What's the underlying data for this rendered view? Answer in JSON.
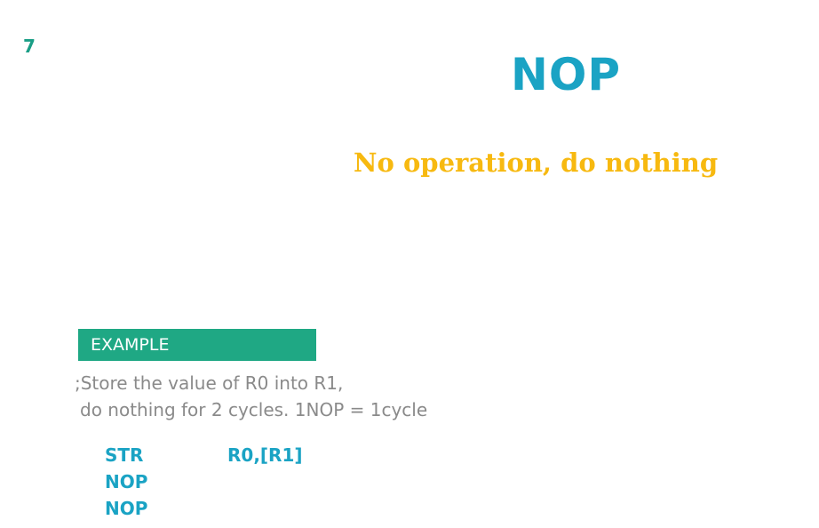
{
  "slide": {
    "number": "7",
    "title": "NOP",
    "subtitle": "No operation, do nothing"
  },
  "example": {
    "label": "EXAMPLE",
    "comment_lines": [
      ";Store the value of R0 into R1,",
      "do nothing for 2 cycles.  1NOP = 1cycle"
    ],
    "code": [
      {
        "mnemonic": "STR",
        "operands": "R0,[R1]"
      },
      {
        "mnemonic": "NOP",
        "operands": ""
      },
      {
        "mnemonic": "NOP",
        "operands": ""
      }
    ]
  },
  "colors": {
    "title": "#1aa3c4",
    "subtitle": "#f7b910",
    "example_bar": "#1fa884",
    "slide_number": "#1a9e86",
    "comment": "#8a8a8a"
  }
}
